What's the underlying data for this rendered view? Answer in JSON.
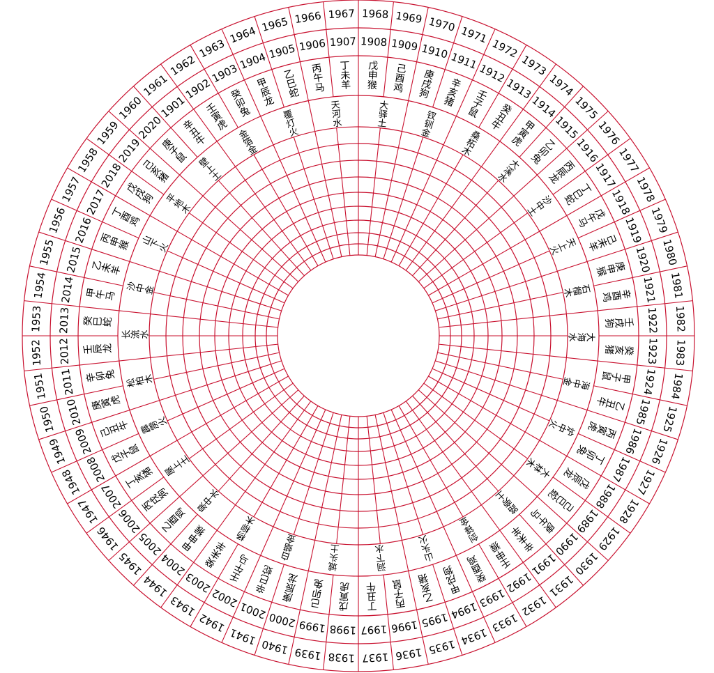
{
  "wheel": {
    "outer_years": [
      "1966",
      "1967",
      "1968",
      "1969",
      "1970",
      "1971",
      "1972",
      "1973",
      "1974",
      "1975",
      "1976",
      "1977",
      "1978",
      "1979",
      "1980",
      "1981",
      "1982",
      "1983",
      "1984",
      "1925",
      "1926",
      "1927",
      "1928",
      "1929",
      "1930",
      "1931",
      "1932",
      "1933",
      "1934",
      "1935",
      "1936",
      "1937",
      "1938",
      "1939",
      "1940",
      "1941",
      "1942",
      "1943",
      "1944",
      "1945",
      "1946",
      "1947",
      "1948",
      "1949",
      "1950",
      "1951",
      "1952",
      "1953",
      "1954",
      "1955",
      "1956",
      "1957",
      "1958",
      "1959",
      "1960",
      "1961",
      "1962",
      "1963",
      "1964",
      "1965"
    ],
    "inner_years": [
      "1906",
      "1907",
      "1908",
      "1909",
      "1910",
      "1911",
      "1912",
      "1913",
      "1914",
      "1915",
      "1916",
      "1917",
      "1918",
      "1919",
      "1920",
      "1921",
      "1922",
      "1923",
      "1924",
      "1985",
      "1986",
      "1987",
      "1988",
      "1989",
      "1990",
      "1991",
      "1992",
      "1993",
      "1994",
      "1995",
      "1996",
      "1997",
      "1998",
      "1999",
      "2000",
      "2001",
      "2002",
      "2003",
      "2004",
      "2005",
      "2006",
      "2007",
      "2008",
      "2009",
      "2010",
      "2011",
      "2012",
      "2013",
      "2014",
      "2015",
      "2016",
      "2017",
      "2018",
      "2019",
      "2020",
      "1901",
      "1902",
      "1903",
      "1904",
      "1905"
    ],
    "ganzhi": [
      "丙午马",
      "丁未羊",
      "戊申猴",
      "己酉鸡",
      "庚戌狗",
      "辛亥猪",
      "壬子鼠",
      "癸丑牛",
      "甲寅虎",
      "乙卯兔",
      "丙辰龙",
      "丁巳蛇",
      "戊午马",
      "己未羊",
      "庚申猴",
      "辛酉鸡",
      "壬戌狗",
      "癸亥猪",
      "甲子鼠",
      "乙丑牛",
      "丙寅虎",
      "丁卯兔",
      "戊辰龙",
      "己巳蛇",
      "庚午马",
      "辛未羊",
      "壬申猴",
      "癸酉鸡",
      "甲戌狗",
      "乙亥猪",
      "丙子鼠",
      "丁丑牛",
      "戊寅虎",
      "己卯兔",
      "庚辰龙",
      "辛巳蛇",
      "壬午马",
      "癸未羊",
      "甲申猴",
      "乙酉鸡",
      "丙戌狗",
      "丁亥猪",
      "戊子鼠",
      "己丑牛",
      "庚寅虎",
      "辛卯兔",
      "壬辰龙",
      "癸巳蛇",
      "甲午马",
      "乙未羊",
      "丙申猴",
      "丁酉鸡",
      "戊戌狗",
      "己亥猪",
      "庚子鼠",
      "辛丑牛",
      "壬寅虎",
      "癸卯兔",
      "甲辰龙",
      "乙巳蛇"
    ],
    "nayin": [
      "天河水",
      "大驿土",
      "钗钏金",
      "桑柘木",
      "大溪水",
      "沙中土",
      "天上火",
      "石榴木",
      "大海水",
      "海中金",
      "炉中火",
      "大林木",
      "路旁土",
      "剑锋金",
      "山头火",
      "涧下水",
      "城头土",
      "白蜡金",
      "杨柳木",
      "泉中水",
      "屋上土",
      "霹雳火",
      "松柏木",
      "长流水",
      "沙中金",
      "山下火",
      "平地木",
      "壁上土",
      "金箔金",
      "覆灯火"
    ]
  }
}
